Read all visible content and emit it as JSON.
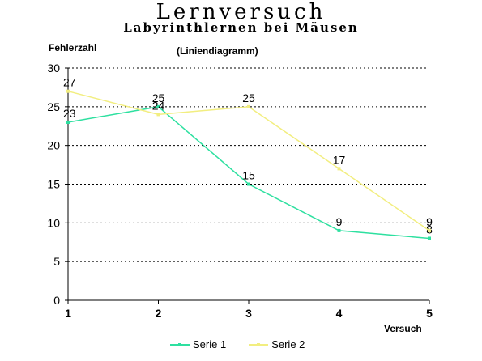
{
  "chart_data": {
    "type": "line",
    "title": "Lernversuch",
    "subtitle": "Labyrinthlernen bei Mäusen",
    "note": "(Liniendiagramm)",
    "xlabel": "Versuch",
    "ylabel": "Fehlerzahl",
    "x": [
      1,
      2,
      3,
      4,
      5
    ],
    "ylim": [
      0,
      30
    ],
    "yticks": [
      0,
      5,
      10,
      15,
      20,
      25,
      30
    ],
    "grid": "horizontal dotted",
    "legend_position": "bottom",
    "series": [
      {
        "name": "Serie 1",
        "values": [
          23,
          25,
          15,
          9,
          8
        ],
        "color": "#2ee0a0"
      },
      {
        "name": "Serie 2",
        "values": [
          27,
          24,
          25,
          17,
          9
        ],
        "color": "#f2ee80"
      }
    ]
  }
}
